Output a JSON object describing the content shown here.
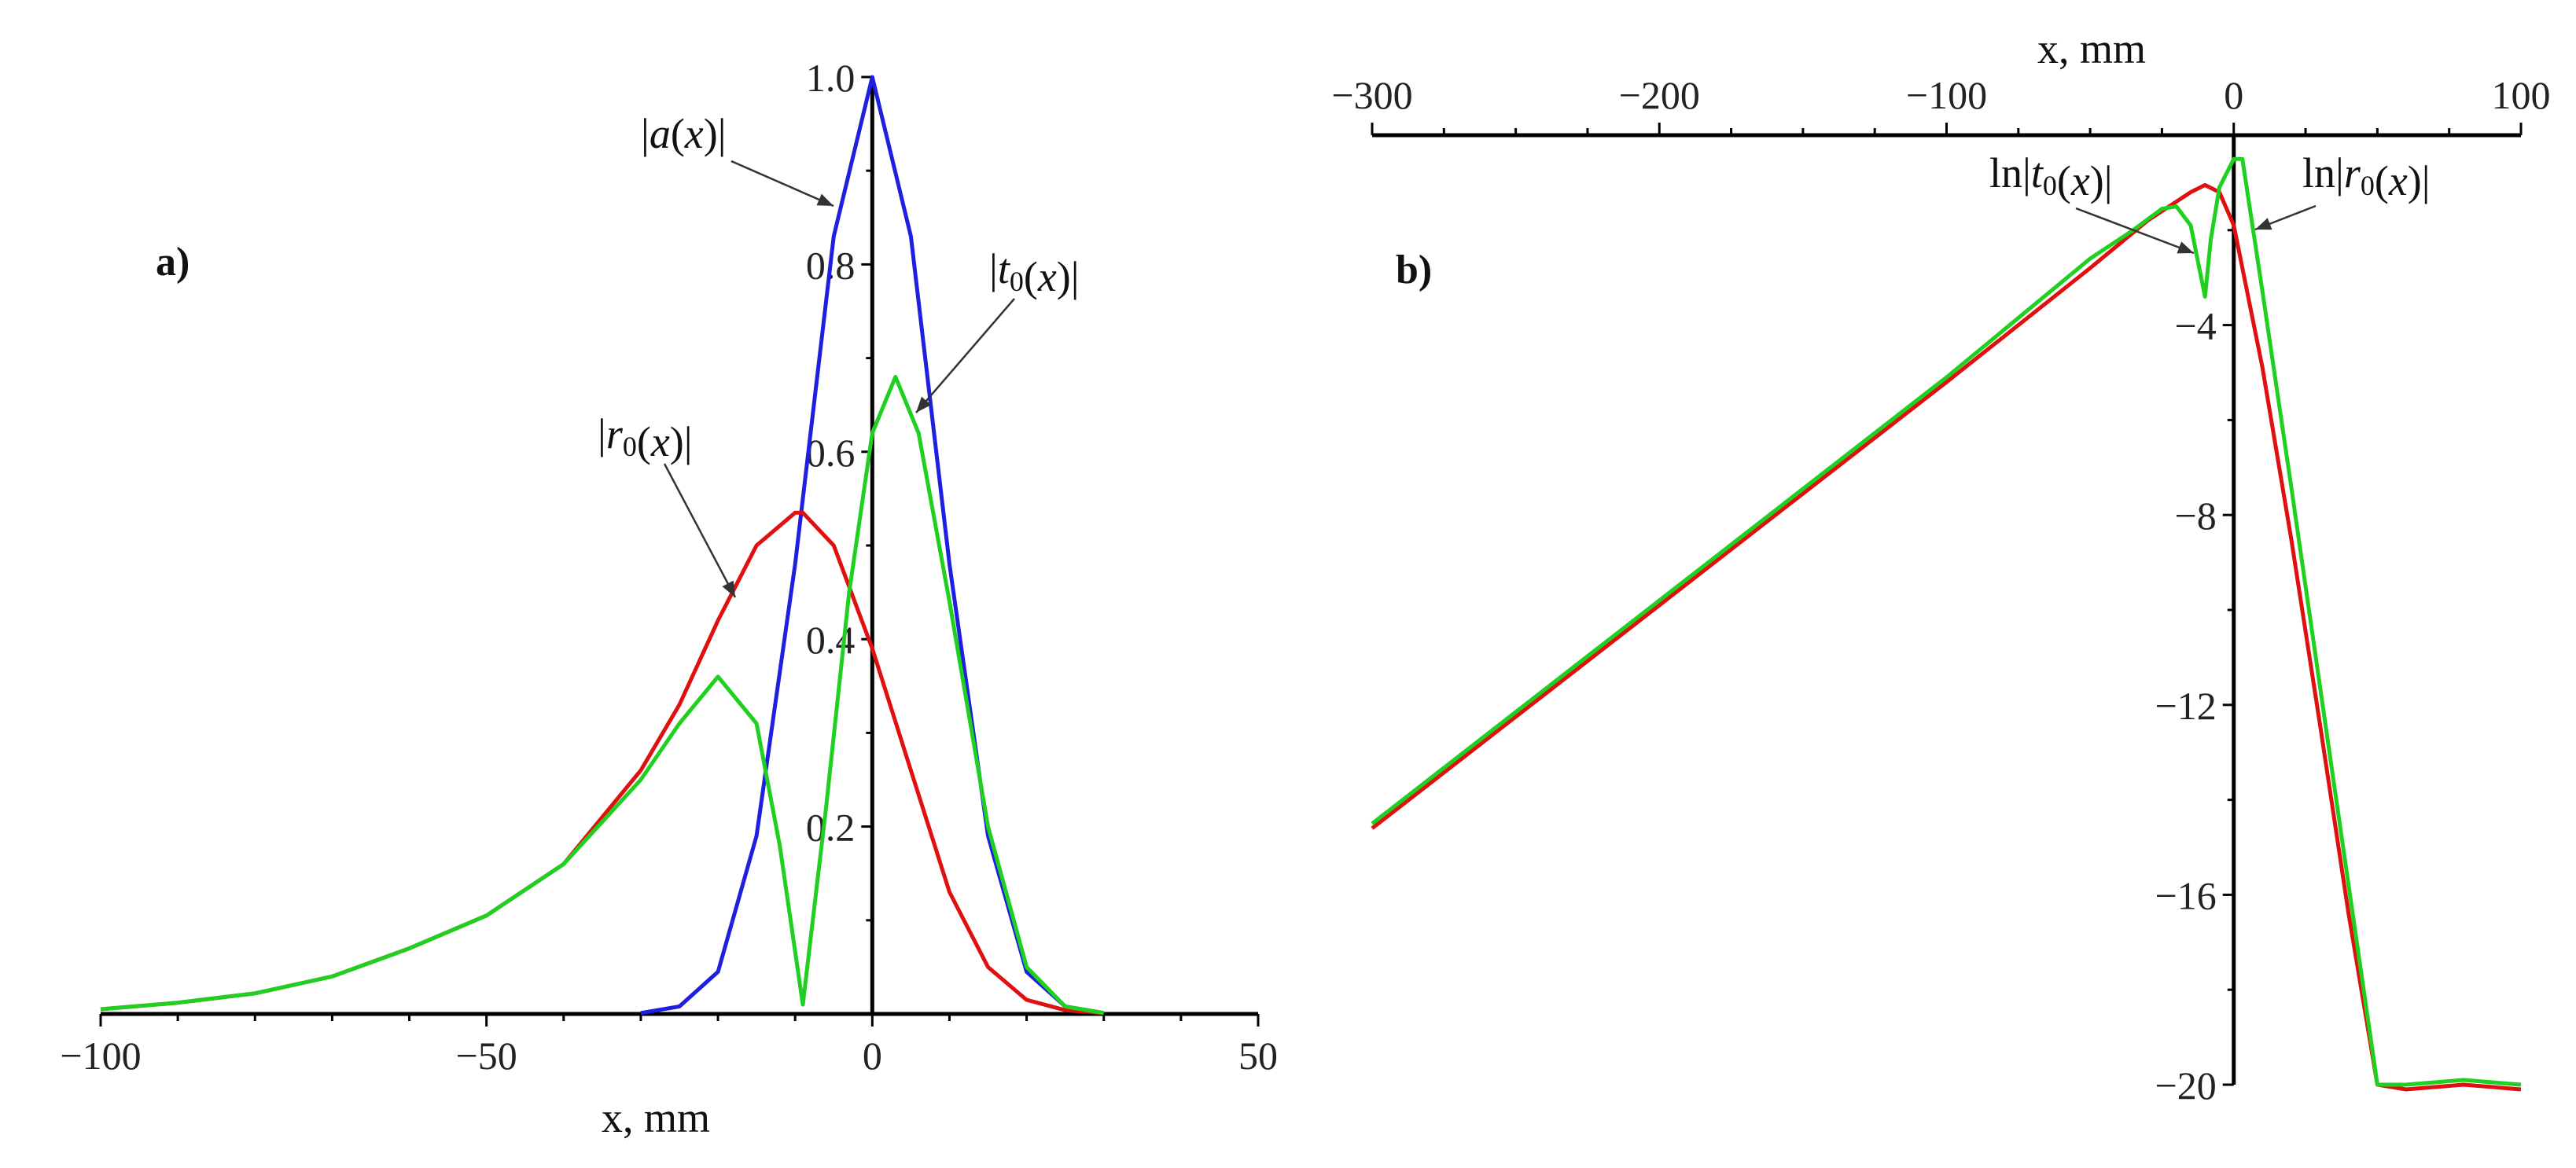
{
  "chart_data": [
    {
      "type": "line",
      "panel_label": "a)",
      "xlabel": "x, mm",
      "ylabel": "",
      "xlim": [
        -100,
        50
      ],
      "ylim": [
        0,
        1.0
      ],
      "x_ticks": [
        "−100",
        "−50",
        "0",
        "50"
      ],
      "y_ticks": [
        "0.2",
        "0.4",
        "0.6",
        "0.8",
        "1.0"
      ],
      "series": [
        {
          "name": "|a(x)|",
          "color": "#1f1fe0",
          "x": [
            -30,
            -25,
            -20,
            -15,
            -10,
            -5,
            0,
            5,
            10,
            15,
            20,
            25,
            30
          ],
          "y": [
            0.001,
            0.008,
            0.045,
            0.19,
            0.48,
            0.83,
            1.0,
            0.83,
            0.48,
            0.19,
            0.045,
            0.008,
            0.001
          ]
        },
        {
          "name": "|r0(x)|",
          "color": "#e01010",
          "x": [
            -100,
            -90,
            -80,
            -70,
            -60,
            -50,
            -40,
            -30,
            -25,
            -20,
            -15,
            -10,
            -9,
            -5,
            0,
            5,
            10,
            15,
            20,
            25,
            30
          ],
          "y": [
            0.005,
            0.012,
            0.022,
            0.04,
            0.07,
            0.105,
            0.16,
            0.26,
            0.33,
            0.42,
            0.5,
            0.535,
            0.535,
            0.5,
            0.39,
            0.26,
            0.13,
            0.05,
            0.015,
            0.004,
            0.001
          ]
        },
        {
          "name": "|t0(x)|",
          "color": "#20d020",
          "x": [
            -100,
            -90,
            -80,
            -70,
            -60,
            -50,
            -40,
            -30,
            -25,
            -20,
            -15,
            -12,
            -9,
            -6,
            -3,
            0,
            3,
            6,
            10,
            15,
            20,
            25,
            30
          ],
          "y": [
            0.005,
            0.012,
            0.022,
            0.04,
            0.07,
            0.105,
            0.16,
            0.25,
            0.31,
            0.36,
            0.31,
            0.18,
            0.01,
            0.22,
            0.45,
            0.62,
            0.68,
            0.62,
            0.44,
            0.2,
            0.05,
            0.008,
            0.001
          ]
        }
      ],
      "annotations": [
        "|a(x)|",
        "|r0(x)|",
        "|t0(x)|"
      ]
    },
    {
      "type": "line",
      "panel_label": "b)",
      "xlabel": "x, mm",
      "ylabel": "",
      "xlim": [
        -300,
        100
      ],
      "ylim": [
        -20,
        0
      ],
      "x_ticks": [
        "−300",
        "−200",
        "−100",
        "0",
        "100"
      ],
      "y_ticks": [
        "−4",
        "−8",
        "−12",
        "−16",
        "−20"
      ],
      "series": [
        {
          "name": "ln|r0(x)|",
          "color": "#e01010",
          "x": [
            -300,
            -200,
            -100,
            -50,
            -30,
            -15,
            -10,
            -5,
            0,
            10,
            20,
            30,
            40,
            50,
            60,
            80,
            100
          ],
          "y": [
            -14.6,
            -9.9,
            -5.2,
            -2.8,
            -1.8,
            -1.2,
            -1.05,
            -1.2,
            -1.9,
            -4.9,
            -8.5,
            -12.4,
            -16.4,
            -20.0,
            -20.1,
            -20.0,
            -20.1
          ]
        },
        {
          "name": "ln|t0(x)|",
          "color": "#20d020",
          "x": [
            -300,
            -200,
            -100,
            -50,
            -35,
            -25,
            -20,
            -15,
            -12,
            -10,
            -8,
            -5,
            0,
            3,
            10,
            20,
            30,
            40,
            50,
            60,
            80,
            100
          ],
          "y": [
            -14.5,
            -9.8,
            -5.1,
            -2.6,
            -2.0,
            -1.55,
            -1.5,
            -1.9,
            -2.8,
            -3.4,
            -2.2,
            -1.1,
            -0.5,
            -0.5,
            -3.3,
            -7.4,
            -11.6,
            -15.8,
            -20.0,
            -20.0,
            -19.9,
            -20.0
          ]
        }
      ],
      "annotations": [
        "ln|t0(x)|",
        "ln|r0(x)|"
      ]
    }
  ]
}
